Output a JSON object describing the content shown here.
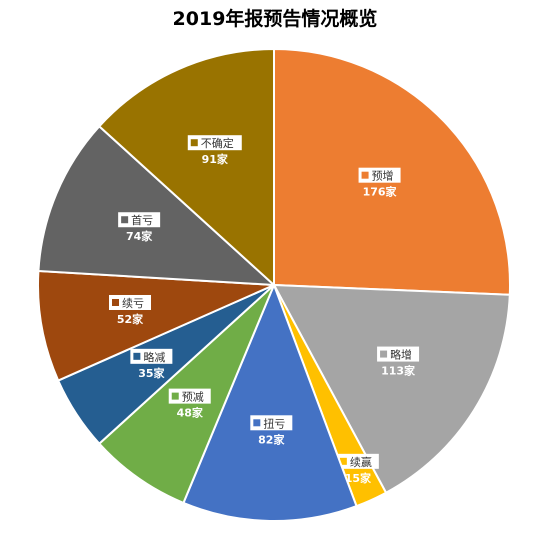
{
  "chart_data": {
    "type": "pie",
    "title": "2019年报预告情况概览",
    "categories": [
      "预增",
      "略增",
      "续赢",
      "扭亏",
      "预减",
      "略减",
      "续亏",
      "首亏",
      "不确定"
    ],
    "values": [
      176,
      113,
      15,
      82,
      48,
      35,
      52,
      74,
      91
    ],
    "value_labels": [
      "176家",
      "113家",
      "15家",
      "82家",
      "48家",
      "35家",
      "52家",
      "74家",
      "91家"
    ],
    "colors": [
      "#ED7D31",
      "#A5A5A5",
      "#FFC000",
      "#4472C4",
      "#70AD47",
      "#255E91",
      "#9E480E",
      "#636363",
      "#997300"
    ],
    "legend": "none",
    "start": "top, clockwise"
  }
}
